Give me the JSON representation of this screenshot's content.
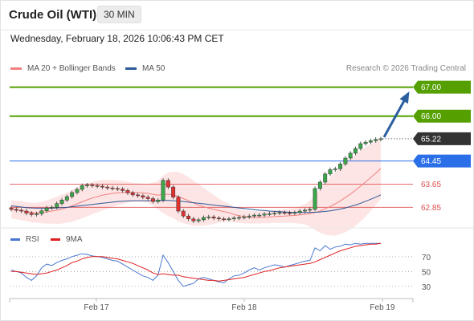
{
  "header": {
    "title": "Crude Oil (WTI)",
    "timeframe": "30 MIN"
  },
  "datetime": "Wednesday, February 18, 2026 10:06:43 PM CET",
  "legend": {
    "ma20": {
      "label": "MA 20 + Bollinger Bands",
      "color": "#f08080"
    },
    "ma50": {
      "label": "MA 50",
      "color": "#2b5797"
    }
  },
  "copyright": "Research © 2026 Trading Central",
  "rsi_legend": {
    "rsi": {
      "label": "RSI",
      "color": "#4a78d0"
    },
    "ma9": {
      "label": "9MA",
      "color": "#e02020"
    }
  },
  "chart_data": [
    {
      "type": "candlestick",
      "ylim": [
        62.25,
        67.35
      ],
      "x_ticks": [
        "Feb 17",
        "Feb 18",
        "Feb 19"
      ],
      "levels": [
        {
          "value": 67.0,
          "label": "67.00",
          "color": "#55a000",
          "style": "resistance"
        },
        {
          "value": 66.0,
          "label": "66.00",
          "color": "#55a000",
          "style": "resistance"
        },
        {
          "value": 65.22,
          "label": "65.22",
          "color": "#333333",
          "style": "last-price"
        },
        {
          "value": 64.45,
          "label": "64.45",
          "color": "#2a6ee8",
          "style": "pivot"
        },
        {
          "value": 63.65,
          "label": "63.65",
          "color": "#e05050",
          "style": "support"
        },
        {
          "value": 62.85,
          "label": "62.85",
          "color": "#e05050",
          "style": "support"
        }
      ],
      "close_series": [
        62.78,
        62.75,
        62.72,
        62.65,
        62.6,
        62.63,
        62.73,
        62.83,
        62.85,
        62.98,
        63.1,
        63.22,
        63.36,
        63.47,
        63.6,
        63.62,
        63.6,
        63.58,
        63.55,
        63.52,
        63.5,
        63.48,
        63.43,
        63.35,
        63.28,
        63.25,
        63.2,
        63.15,
        63.05,
        63.1,
        63.78,
        63.55,
        63.2,
        62.72,
        62.55,
        62.45,
        62.38,
        62.42,
        62.5,
        62.52,
        62.48,
        62.45,
        62.43,
        62.45,
        62.48,
        62.5,
        62.52,
        62.55,
        62.58,
        62.58,
        62.62,
        62.63,
        62.65,
        62.67,
        62.66,
        62.65,
        62.67,
        62.72,
        62.75,
        62.78,
        63.5,
        63.72,
        64.0,
        64.15,
        64.18,
        64.35,
        64.55,
        64.72,
        64.88,
        65.05,
        65.1,
        65.15,
        65.2,
        65.22
      ],
      "ma20": [
        62.78,
        62.76,
        62.74,
        62.7,
        62.67,
        62.66,
        62.67,
        62.69,
        62.72,
        62.75,
        62.79,
        62.84,
        62.9,
        62.97,
        63.04,
        63.11,
        63.17,
        63.22,
        63.27,
        63.3,
        63.33,
        63.35,
        63.36,
        63.37,
        63.37,
        63.36,
        63.35,
        63.33,
        63.3,
        63.27,
        63.3,
        63.3,
        63.28,
        63.22,
        63.15,
        63.08,
        63.0,
        62.93,
        62.87,
        62.82,
        62.78,
        62.74,
        62.7,
        62.67,
        62.6,
        62.56,
        62.53,
        62.51,
        62.5,
        62.5,
        62.51,
        62.52,
        62.53,
        62.54,
        62.55,
        62.56,
        62.57,
        62.59,
        62.61,
        62.63,
        62.67,
        62.72,
        62.8,
        62.88,
        62.97,
        63.07,
        63.19,
        63.31,
        63.44,
        63.58,
        63.73,
        63.88,
        64.03,
        64.19
      ],
      "ma50": [
        62.9,
        62.88,
        62.86,
        62.84,
        62.83,
        62.82,
        62.82,
        62.82,
        62.82,
        62.83,
        62.84,
        62.85,
        62.87,
        62.89,
        62.91,
        62.93,
        62.95,
        62.97,
        62.99,
        63.01,
        63.03,
        63.05,
        63.06,
        63.07,
        63.08,
        63.08,
        63.08,
        63.08,
        63.08,
        63.08,
        63.09,
        63.09,
        63.08,
        63.07,
        63.05,
        63.03,
        63.01,
        62.99,
        62.97,
        62.95,
        62.93,
        62.91,
        62.89,
        62.87,
        62.85,
        62.83,
        62.81,
        62.79,
        62.77,
        62.75,
        62.74,
        62.72,
        62.71,
        62.7,
        62.69,
        62.68,
        62.67,
        62.67,
        62.67,
        62.67,
        62.68,
        62.69,
        62.71,
        62.73,
        62.76,
        62.79,
        62.83,
        62.88,
        62.93,
        62.99,
        63.06,
        63.13,
        63.2,
        63.28
      ],
      "band_width": [
        0.32,
        0.32,
        0.33,
        0.33,
        0.34,
        0.35,
        0.37,
        0.4,
        0.43,
        0.47,
        0.5,
        0.52,
        0.55,
        0.56,
        0.57,
        0.57,
        0.56,
        0.55,
        0.53,
        0.5,
        0.47,
        0.43,
        0.4,
        0.36,
        0.33,
        0.32,
        0.32,
        0.33,
        0.4,
        0.5,
        0.65,
        0.75,
        0.8,
        0.85,
        0.85,
        0.82,
        0.78,
        0.72,
        0.65,
        0.58,
        0.5,
        0.42,
        0.35,
        0.3,
        0.27,
        0.25,
        0.23,
        0.22,
        0.21,
        0.21,
        0.21,
        0.22,
        0.22,
        0.23,
        0.24,
        0.25,
        0.27,
        0.3,
        0.35,
        0.45,
        0.6,
        0.75,
        0.9,
        1.0,
        1.1,
        1.15,
        1.2,
        1.22,
        1.23,
        1.22,
        1.2,
        1.15,
        1.1,
        1.05
      ],
      "projection": {
        "from": 65.22,
        "to": 67.0
      }
    },
    {
      "type": "line",
      "name": "RSI",
      "ylim": [
        20,
        85
      ],
      "y_ticks": [
        70,
        50,
        30
      ],
      "series": [
        {
          "name": "RSI",
          "values": [
            52,
            50,
            48,
            42,
            38,
            44,
            55,
            60,
            58,
            62,
            65,
            67,
            70,
            72,
            74,
            73,
            71,
            70,
            69,
            67,
            65,
            64,
            60,
            56,
            52,
            48,
            44,
            42,
            38,
            45,
            72,
            62,
            50,
            38,
            30,
            32,
            34,
            40,
            42,
            40,
            38,
            36,
            35,
            40,
            44,
            45,
            48,
            52,
            55,
            52,
            55,
            57,
            59,
            58,
            56,
            58,
            60,
            62,
            64,
            65,
            82,
            78,
            85,
            80,
            83,
            84,
            87,
            86,
            88,
            87,
            88,
            88,
            88,
            88
          ]
        },
        {
          "name": "9MA",
          "values": [
            50,
            50,
            49,
            48,
            47,
            46,
            47,
            48,
            50,
            52,
            55,
            58,
            62,
            64,
            67,
            69,
            70,
            70,
            70,
            69,
            68,
            67,
            65,
            63,
            61,
            58,
            55,
            52,
            48,
            46,
            47,
            46,
            45,
            45,
            43,
            42,
            41,
            40,
            39,
            38,
            38,
            37,
            38,
            39,
            40,
            41,
            42,
            44,
            46,
            48,
            50,
            51,
            53,
            55,
            56,
            57,
            58,
            59,
            60,
            61,
            63,
            66,
            69,
            72,
            75,
            78,
            80,
            82,
            84,
            85,
            86,
            87,
            87,
            88
          ]
        }
      ]
    }
  ]
}
